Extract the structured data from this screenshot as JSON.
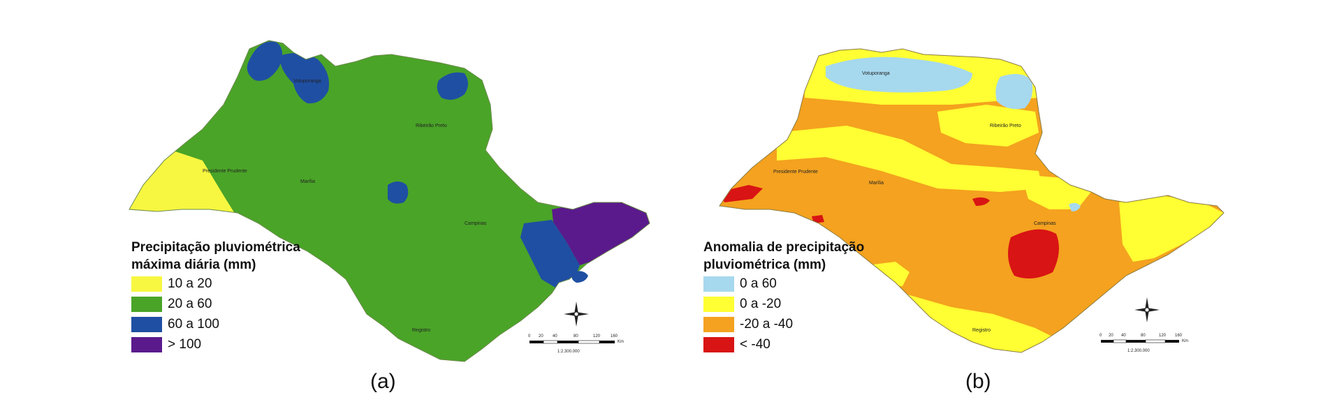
{
  "panel_a": {
    "legend_title_line1": "Precipitação pluviométrica",
    "legend_title_line2": "máxima diária (mm)",
    "legend": [
      {
        "label": "10 a 20",
        "color": "#f7f741"
      },
      {
        "label": "20 a 60",
        "color": "#4aa428"
      },
      {
        "label": "60 a 100",
        "color": "#1f4fa3"
      },
      {
        "label": "> 100",
        "color": "#5a1a8c"
      }
    ],
    "caption": "(a)",
    "scale_ratio": "1:2.300.000",
    "scale_ticks": [
      "0",
      "20",
      "40",
      "80",
      "120",
      "160"
    ],
    "scale_unit": "Km"
  },
  "panel_b": {
    "legend_title_line1": "Anomalia de precipitação",
    "legend_title_line2": "pluviométrica (mm)",
    "legend": [
      {
        "label": "0 a 60",
        "color": "#a6d8ee"
      },
      {
        "label": "0 a -20",
        "color": "#ffff33"
      },
      {
        "label": "-20 a -40",
        "color": "#f4a21f"
      },
      {
        "label": "< -40",
        "color": "#d91414"
      }
    ],
    "caption": "(b)",
    "scale_ratio": "1:2.300.000",
    "scale_ticks": [
      "0",
      "20",
      "40",
      "80",
      "120",
      "160"
    ],
    "scale_unit": "Km"
  },
  "cities": {
    "votuporanga": "Votuporanga",
    "ribeirao_preto": "Ribeirão Preto",
    "presidente_prudente": "Presidente Prudente",
    "marilia": "Marília",
    "campinas": "Campinas",
    "registro": "Registro"
  }
}
